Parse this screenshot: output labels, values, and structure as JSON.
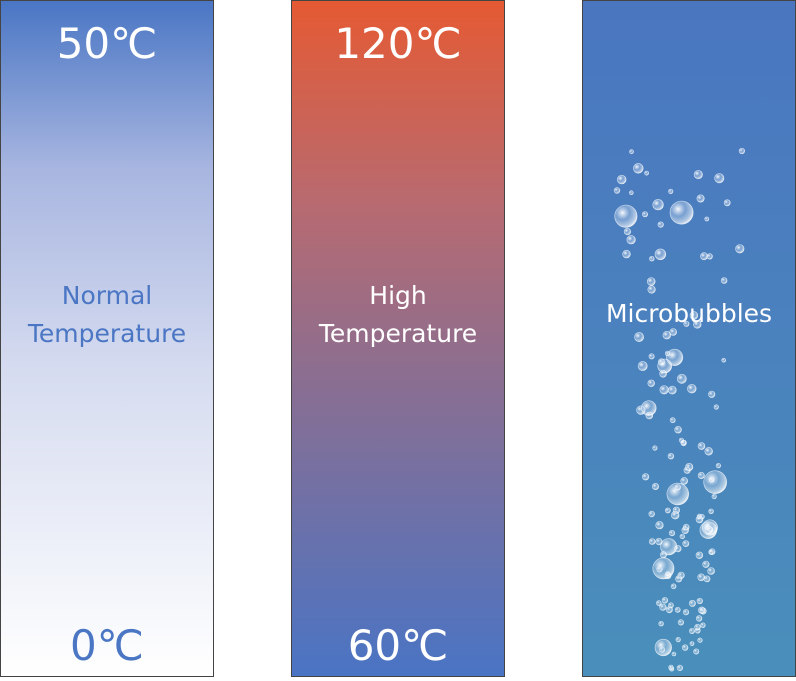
{
  "panels": [
    {
      "top_label": "50℃",
      "label_lines": [
        "Normal",
        "Temperature"
      ],
      "bottom_label": "0℃"
    },
    {
      "top_label": "120℃",
      "label_lines": [
        "High",
        "Temperature"
      ],
      "bottom_label": "60℃"
    },
    {
      "label_lines": [
        "Microbubbles"
      ]
    }
  ]
}
